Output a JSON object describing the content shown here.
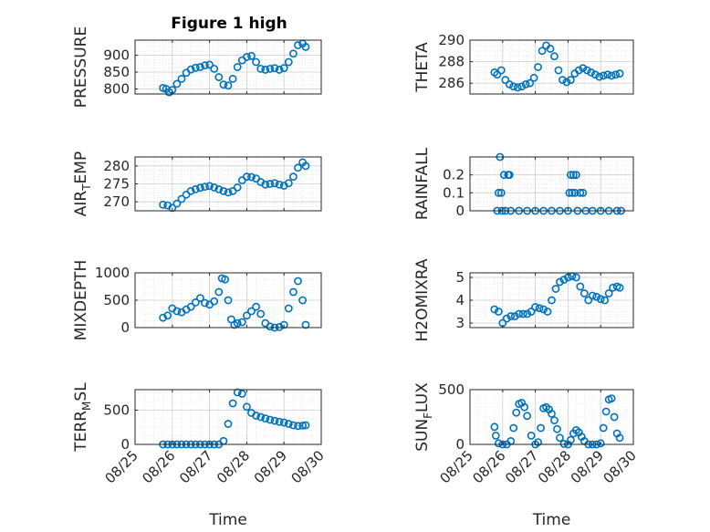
{
  "figure_title": "Figure 1 high",
  "colors": {
    "marker": "#0072BD",
    "axis": "#262626",
    "grid": "#d9d9d9",
    "background": "#ffffff"
  },
  "chart_data": [
    {
      "type": "scatter",
      "title": "Figure 1 high",
      "ylabel": "PRESSURE",
      "xlabel": "",
      "xlim": [
        "08/25",
        "08/30"
      ],
      "ylim": [
        785,
        945
      ],
      "yticks": [
        800,
        850,
        900
      ],
      "ytick_labels": [
        "800",
        "850",
        "900"
      ],
      "grid": true,
      "x": [
        "08/25 18:00",
        "08/25 20:00",
        "08/25 22:00",
        "08/26 00:00",
        "08/26 03:00",
        "08/26 06:00",
        "08/26 09:00",
        "08/26 12:00",
        "08/26 15:00",
        "08/26 18:00",
        "08/26 21:00",
        "08/27 00:00",
        "08/27 03:00",
        "08/27 06:00",
        "08/27 09:00",
        "08/27 12:00",
        "08/27 15:00",
        "08/27 18:00",
        "08/27 21:00",
        "08/28 00:00",
        "08/28 03:00",
        "08/28 06:00",
        "08/28 09:00",
        "08/28 12:00",
        "08/28 15:00",
        "08/28 18:00",
        "08/28 21:00",
        "08/29 00:00",
        "08/29 03:00",
        "08/29 06:00",
        "08/29 09:00",
        "08/29 12:00",
        "08/29 14:00"
      ],
      "y": [
        803,
        800,
        790,
        797,
        815,
        830,
        848,
        858,
        863,
        865,
        870,
        872,
        860,
        835,
        813,
        810,
        830,
        865,
        885,
        895,
        898,
        880,
        860,
        857,
        860,
        862,
        857,
        862,
        880,
        905,
        930,
        935,
        925
      ]
    },
    {
      "type": "scatter",
      "ylabel": "THETA",
      "xlabel": "",
      "xlim": [
        "08/25",
        "08/30"
      ],
      "ylim": [
        285,
        290
      ],
      "yticks": [
        286,
        288,
        290
      ],
      "ytick_labels": [
        "286",
        "288",
        "290"
      ],
      "grid": true,
      "x": [
        "08/25 18:00",
        "08/25 20:00",
        "08/25 23:00",
        "08/26 02:00",
        "08/26 05:00",
        "08/26 08:00",
        "08/26 11:00",
        "08/26 14:00",
        "08/26 17:00",
        "08/26 20:00",
        "08/26 23:00",
        "08/27 02:00",
        "08/27 05:00",
        "08/27 08:00",
        "08/27 11:00",
        "08/27 14:00",
        "08/27 17:00",
        "08/27 20:00",
        "08/27 23:00",
        "08/28 02:00",
        "08/28 05:00",
        "08/28 08:00",
        "08/28 11:00",
        "08/28 14:00",
        "08/28 17:00",
        "08/28 20:00",
        "08/28 23:00",
        "08/29 02:00",
        "08/29 05:00",
        "08/29 08:00",
        "08/29 11:00",
        "08/29 14:00"
      ],
      "y": [
        287.0,
        286.8,
        287.2,
        286.3,
        285.9,
        285.7,
        285.6,
        285.7,
        285.9,
        286.0,
        286.5,
        287.5,
        289.0,
        289.5,
        289.2,
        288.5,
        287.2,
        286.3,
        286.1,
        286.3,
        286.9,
        287.2,
        287.4,
        287.2,
        287.0,
        286.8,
        286.6,
        286.7,
        286.8,
        286.7,
        286.8,
        286.9
      ]
    },
    {
      "type": "scatter",
      "ylabel": "AIR_TEMP",
      "xlabel": "",
      "xlim": [
        "08/25",
        "08/30"
      ],
      "ylim": [
        267.5,
        282.5
      ],
      "yticks": [
        270,
        275,
        280
      ],
      "ytick_labels": [
        "270",
        "275",
        "280"
      ],
      "grid": true,
      "x": [
        "08/25 18:00",
        "08/25 21:00",
        "08/26 00:00",
        "08/26 03:00",
        "08/26 06:00",
        "08/26 09:00",
        "08/26 12:00",
        "08/26 15:00",
        "08/26 18:00",
        "08/26 21:00",
        "08/27 00:00",
        "08/27 03:00",
        "08/27 06:00",
        "08/27 09:00",
        "08/27 12:00",
        "08/27 15:00",
        "08/27 18:00",
        "08/27 21:00",
        "08/28 00:00",
        "08/28 03:00",
        "08/28 06:00",
        "08/28 09:00",
        "08/28 12:00",
        "08/28 15:00",
        "08/28 18:00",
        "08/28 21:00",
        "08/29 00:00",
        "08/29 03:00",
        "08/29 06:00",
        "08/29 09:00",
        "08/29 12:00",
        "08/29 14:00"
      ],
      "y": [
        269.2,
        269.0,
        268.3,
        269.5,
        270.8,
        272.0,
        273.0,
        273.5,
        273.9,
        274.2,
        274.4,
        274.0,
        273.5,
        273.0,
        272.6,
        273.0,
        274.0,
        276.0,
        277.0,
        276.9,
        276.5,
        275.5,
        274.8,
        275.0,
        275.2,
        274.8,
        274.5,
        275.2,
        277.0,
        279.5,
        281.0,
        280.0
      ]
    },
    {
      "type": "scatter",
      "ylabel": "RAINFALL",
      "xlabel": "",
      "xlim": [
        "08/25",
        "08/30"
      ],
      "ylim": [
        0,
        0.3
      ],
      "yticks": [
        0,
        0.1,
        0.2
      ],
      "ytick_labels": [
        "0",
        "0.1",
        "0.2"
      ],
      "grid": true,
      "x": [
        "08/25 20:00",
        "08/25 21:00",
        "08/25 22:00",
        "08/25 23:00",
        "08/25 23:30",
        "08/26 01:00",
        "08/26 02:00",
        "08/26 04:00",
        "08/26 05:00",
        "08/26 06:00",
        "08/26 12:00",
        "08/26 18:00",
        "08/27 00:00",
        "08/27 06:00",
        "08/27 12:00",
        "08/27 18:00",
        "08/28 00:00",
        "08/28 01:00",
        "08/28 02:00",
        "08/28 03:00",
        "08/28 04:00",
        "08/28 05:00",
        "08/28 06:00",
        "08/28 07:00",
        "08/28 09:00",
        "08/28 11:00",
        "08/28 13:00",
        "08/28 18:00",
        "08/29 00:00",
        "08/29 06:00",
        "08/29 12:00",
        "08/29 15:00"
      ],
      "y": [
        0.0,
        0.1,
        0.3,
        0.1,
        0.0,
        0.2,
        0.0,
        0.2,
        0.2,
        0.0,
        0.0,
        0.0,
        0.0,
        0.0,
        0.0,
        0.0,
        0.0,
        0.1,
        0.2,
        0.1,
        0.2,
        0.1,
        0.2,
        0.0,
        0.1,
        0.1,
        0.0,
        0.0,
        0.0,
        0.0,
        0.0,
        0.0
      ]
    },
    {
      "type": "scatter",
      "ylabel": "MIXDEPTH",
      "xlabel": "",
      "xlim": [
        "08/25",
        "08/30"
      ],
      "ylim": [
        0,
        1000
      ],
      "yticks": [
        0,
        500,
        1000
      ],
      "ytick_labels": [
        "0",
        "500",
        "1000"
      ],
      "grid": true,
      "x": [
        "08/25 18:00",
        "08/25 21:00",
        "08/26 00:00",
        "08/26 03:00",
        "08/26 06:00",
        "08/26 09:00",
        "08/26 12:00",
        "08/26 15:00",
        "08/26 18:00",
        "08/26 21:00",
        "08/27 00:00",
        "08/27 03:00",
        "08/27 06:00",
        "08/27 08:00",
        "08/27 10:00",
        "08/27 12:00",
        "08/27 14:00",
        "08/27 16:00",
        "08/27 18:00",
        "08/27 21:00",
        "08/28 00:00",
        "08/28 03:00",
        "08/28 06:00",
        "08/28 09:00",
        "08/28 12:00",
        "08/28 15:00",
        "08/28 18:00",
        "08/28 21:00",
        "08/29 00:00",
        "08/29 03:00",
        "08/29 06:00",
        "08/29 09:00",
        "08/29 12:00",
        "08/29 14:00"
      ],
      "y": [
        180,
        220,
        350,
        300,
        280,
        330,
        380,
        460,
        540,
        450,
        420,
        480,
        650,
        900,
        880,
        500,
        150,
        50,
        80,
        100,
        220,
        300,
        380,
        250,
        80,
        20,
        0,
        10,
        50,
        350,
        650,
        850,
        500,
        50
      ]
    },
    {
      "type": "scatter",
      "ylabel": "H2OMIXRA",
      "xlabel": "",
      "xlim": [
        "08/25",
        "08/30"
      ],
      "ylim": [
        2.8,
        5.2
      ],
      "yticks": [
        3,
        4,
        5
      ],
      "ytick_labels": [
        "3",
        "4",
        "5"
      ],
      "grid": true,
      "x": [
        "08/25 18:00",
        "08/25 21:00",
        "08/26 00:00",
        "08/26 03:00",
        "08/26 06:00",
        "08/26 09:00",
        "08/26 12:00",
        "08/26 15:00",
        "08/26 18:00",
        "08/26 21:00",
        "08/27 00:00",
        "08/27 03:00",
        "08/27 06:00",
        "08/27 09:00",
        "08/27 12:00",
        "08/27 15:00",
        "08/27 18:00",
        "08/27 21:00",
        "08/28 00:00",
        "08/28 03:00",
        "08/28 06:00",
        "08/28 09:00",
        "08/28 12:00",
        "08/28 15:00",
        "08/28 18:00",
        "08/28 21:00",
        "08/29 00:00",
        "08/29 03:00",
        "08/29 06:00",
        "08/29 09:00",
        "08/29 12:00",
        "08/29 14:00"
      ],
      "y": [
        3.6,
        3.5,
        3.0,
        3.2,
        3.3,
        3.3,
        3.4,
        3.4,
        3.4,
        3.5,
        3.7,
        3.65,
        3.6,
        3.5,
        4.0,
        4.5,
        4.8,
        4.9,
        5.0,
        5.05,
        5.0,
        4.6,
        4.3,
        4.0,
        4.2,
        4.15,
        4.05,
        4.0,
        4.3,
        4.55,
        4.6,
        4.55
      ]
    },
    {
      "type": "scatter",
      "ylabel": "TERR_MSL",
      "xlabel": "Time",
      "xlim": [
        "08/25",
        "08/30"
      ],
      "xticks": [
        "08/25",
        "08/26",
        "08/27",
        "08/28",
        "08/29",
        "08/30"
      ],
      "ylim": [
        0,
        800
      ],
      "yticks": [
        0,
        500
      ],
      "ytick_labels": [
        "0",
        "500"
      ],
      "grid": true,
      "x": [
        "08/25 18:00",
        "08/25 21:00",
        "08/26 00:00",
        "08/26 03:00",
        "08/26 06:00",
        "08/26 09:00",
        "08/26 12:00",
        "08/26 15:00",
        "08/26 18:00",
        "08/26 21:00",
        "08/27 00:00",
        "08/27 03:00",
        "08/27 06:00",
        "08/27 09:00",
        "08/27 12:00",
        "08/27 15:00",
        "08/27 18:00",
        "08/27 21:00",
        "08/28 00:00",
        "08/28 03:00",
        "08/28 06:00",
        "08/28 09:00",
        "08/28 12:00",
        "08/28 15:00",
        "08/28 18:00",
        "08/28 21:00",
        "08/29 00:00",
        "08/29 03:00",
        "08/29 06:00",
        "08/29 09:00",
        "08/29 12:00",
        "08/29 14:00"
      ],
      "y": [
        0,
        0,
        0,
        0,
        0,
        0,
        0,
        0,
        0,
        0,
        0,
        0,
        0,
        50,
        300,
        600,
        760,
        740,
        550,
        460,
        420,
        400,
        380,
        360,
        345,
        330,
        320,
        300,
        280,
        270,
        275,
        280
      ]
    },
    {
      "type": "scatter",
      "ylabel": "SUN_FLUX",
      "xlabel": "Time",
      "xlim": [
        "08/25",
        "08/30"
      ],
      "xticks": [
        "08/25",
        "08/26",
        "08/27",
        "08/28",
        "08/29",
        "08/30"
      ],
      "ylim": [
        0,
        500
      ],
      "yticks": [
        0,
        500
      ],
      "ytick_labels": [
        "0",
        "500"
      ],
      "grid": true,
      "x": [
        "08/25 18:00",
        "08/25 19:00",
        "08/25 21:00",
        "08/26 00:00",
        "08/26 03:00",
        "08/26 06:00",
        "08/26 08:00",
        "08/26 10:00",
        "08/26 12:00",
        "08/26 14:00",
        "08/26 16:00",
        "08/26 18:00",
        "08/26 21:00",
        "08/27 00:00",
        "08/27 02:00",
        "08/27 04:00",
        "08/27 06:00",
        "08/27 08:00",
        "08/27 10:00",
        "08/27 12:00",
        "08/27 14:00",
        "08/27 16:00",
        "08/27 18:00",
        "08/27 21:00",
        "08/28 00:00",
        "08/28 02:00",
        "08/28 04:00",
        "08/28 06:00",
        "08/28 08:00",
        "08/28 10:00",
        "08/28 12:00",
        "08/28 15:00",
        "08/28 18:00",
        "08/28 21:00",
        "08/29 00:00",
        "08/29 02:00",
        "08/29 04:00",
        "08/29 06:00",
        "08/29 08:00",
        "08/29 10:00",
        "08/29 12:00",
        "08/29 14:00"
      ],
      "y": [
        160,
        80,
        10,
        0,
        0,
        30,
        150,
        290,
        370,
        380,
        340,
        260,
        80,
        0,
        20,
        150,
        330,
        340,
        320,
        280,
        220,
        140,
        60,
        5,
        0,
        40,
        100,
        130,
        110,
        70,
        30,
        0,
        0,
        0,
        10,
        150,
        300,
        410,
        420,
        250,
        100,
        60
      ]
    }
  ]
}
